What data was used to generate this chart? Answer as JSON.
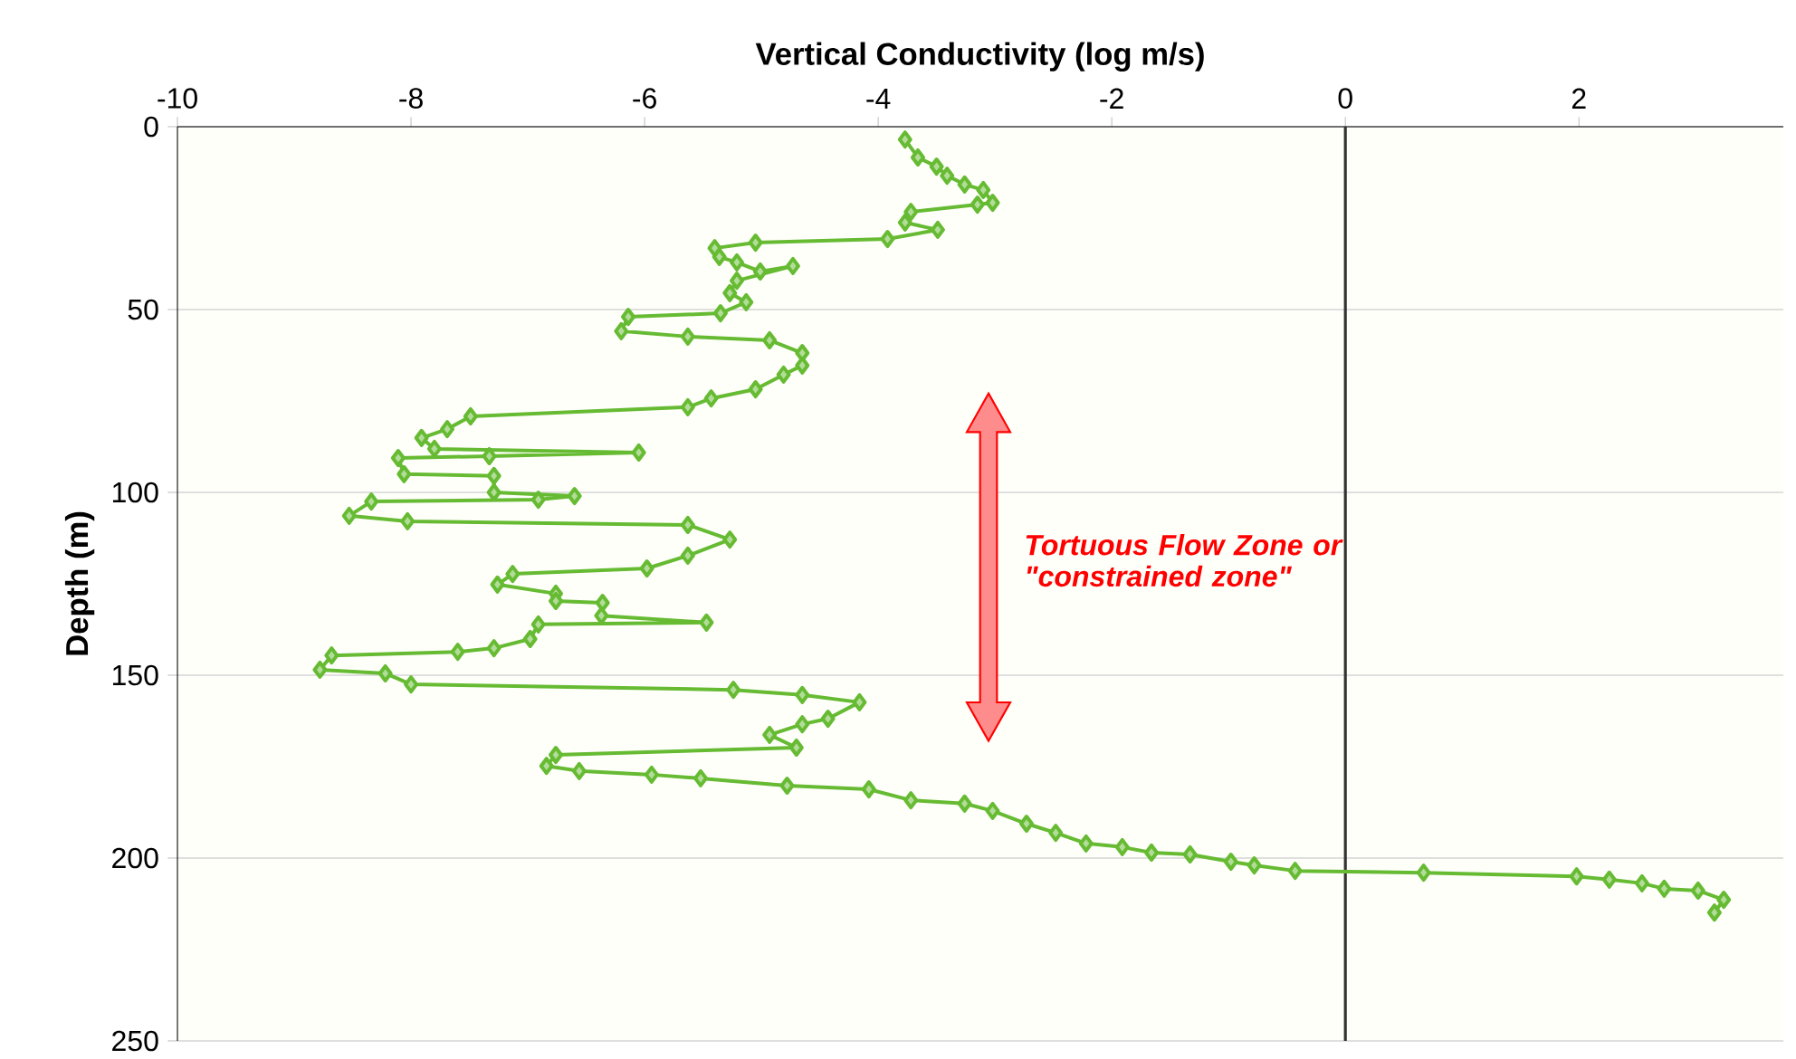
{
  "chart_data": {
    "type": "line",
    "xlabel": "Vertical Conductivity (log m/s)",
    "ylabel": "Depth (m)",
    "annotations": [
      "Tortuous Flow Zone or \"constrained zone\""
    ],
    "xlim": [
      -10,
      3.75
    ],
    "xticks": [
      -10,
      -8,
      -6,
      -4,
      -2,
      0,
      2
    ],
    "ylim": [
      250,
      0
    ],
    "yticks": [
      0,
      50,
      100,
      150,
      200,
      250
    ],
    "grid": "y",
    "marker": "diamond",
    "line_style": "solid",
    "ref_lines": [
      {
        "axis": "x",
        "value": 0,
        "color": "#333333"
      }
    ],
    "series": [
      {
        "color": "#66bb33",
        "x": [
          -3.77,
          -3.66,
          -3.5,
          -3.41,
          -3.26,
          -3.1,
          -3.02,
          -3.15,
          -3.72,
          -3.77,
          -3.49,
          -3.92,
          -5.05,
          -5.4,
          -5.36,
          -5.21,
          -5.01,
          -4.73,
          -5.21,
          -5.27,
          -5.13,
          -5.35,
          -6.14,
          -6.2,
          -5.63,
          -4.93,
          -4.65,
          -4.65,
          -4.81,
          -5.05,
          -5.43,
          -5.63,
          -7.49,
          -7.69,
          -7.91,
          -7.8,
          -6.05,
          -7.33,
          -8.11,
          -8.06,
          -7.29,
          -7.29,
          -6.6,
          -6.91,
          -8.34,
          -8.53,
          -8.03,
          -5.63,
          -5.27,
          -5.63,
          -5.98,
          -7.13,
          -7.26,
          -6.76,
          -6.76,
          -6.36,
          -6.37,
          -5.47,
          -6.91,
          -6.98,
          -7.29,
          -7.6,
          -8.68,
          -8.78,
          -8.22,
          -8.0,
          -5.24,
          -4.65,
          -4.16,
          -4.43,
          -4.65,
          -4.93,
          -4.7,
          -6.76,
          -6.84,
          -6.56,
          -5.94,
          -5.52,
          -4.78,
          -4.08,
          -3.72,
          -3.26,
          -3.02,
          -2.73,
          -2.48,
          -2.22,
          -1.91,
          -1.66,
          -1.33,
          -0.98,
          -0.78,
          -0.43,
          0.67,
          1.98,
          2.26,
          2.54,
          2.73,
          3.02,
          3.24,
          3.16
        ],
        "values": [
          3.5,
          8.4,
          10.9,
          13.4,
          15.8,
          17.3,
          20.8,
          21.3,
          23.3,
          26.2,
          28.2,
          30.7,
          31.7,
          33.2,
          35.6,
          37.1,
          39.6,
          38.1,
          42.1,
          45.5,
          48.0,
          51.0,
          52.0,
          55.9,
          57.4,
          58.4,
          61.9,
          65.3,
          67.8,
          71.8,
          74.3,
          76.7,
          79.2,
          82.7,
          85.1,
          88.1,
          89.1,
          90.1,
          90.6,
          95.0,
          95.5,
          100.0,
          101.0,
          102.0,
          102.5,
          106.4,
          107.9,
          108.9,
          112.9,
          117.3,
          120.8,
          122.3,
          125.2,
          127.7,
          129.7,
          130.2,
          133.7,
          135.6,
          136.1,
          140.1,
          142.6,
          143.6,
          144.6,
          148.5,
          149.5,
          152.5,
          154.0,
          155.4,
          157.4,
          161.9,
          163.4,
          166.3,
          169.8,
          171.8,
          174.8,
          176.2,
          177.2,
          178.2,
          180.2,
          181.2,
          184.2,
          185.1,
          187.1,
          190.6,
          193.1,
          196.0,
          197.0,
          198.5,
          199.0,
          201.0,
          202.0,
          203.5,
          204.0,
          205.0,
          205.9,
          206.9,
          208.4,
          208.9,
          211.4,
          214.9
        ]
      }
    ]
  }
}
